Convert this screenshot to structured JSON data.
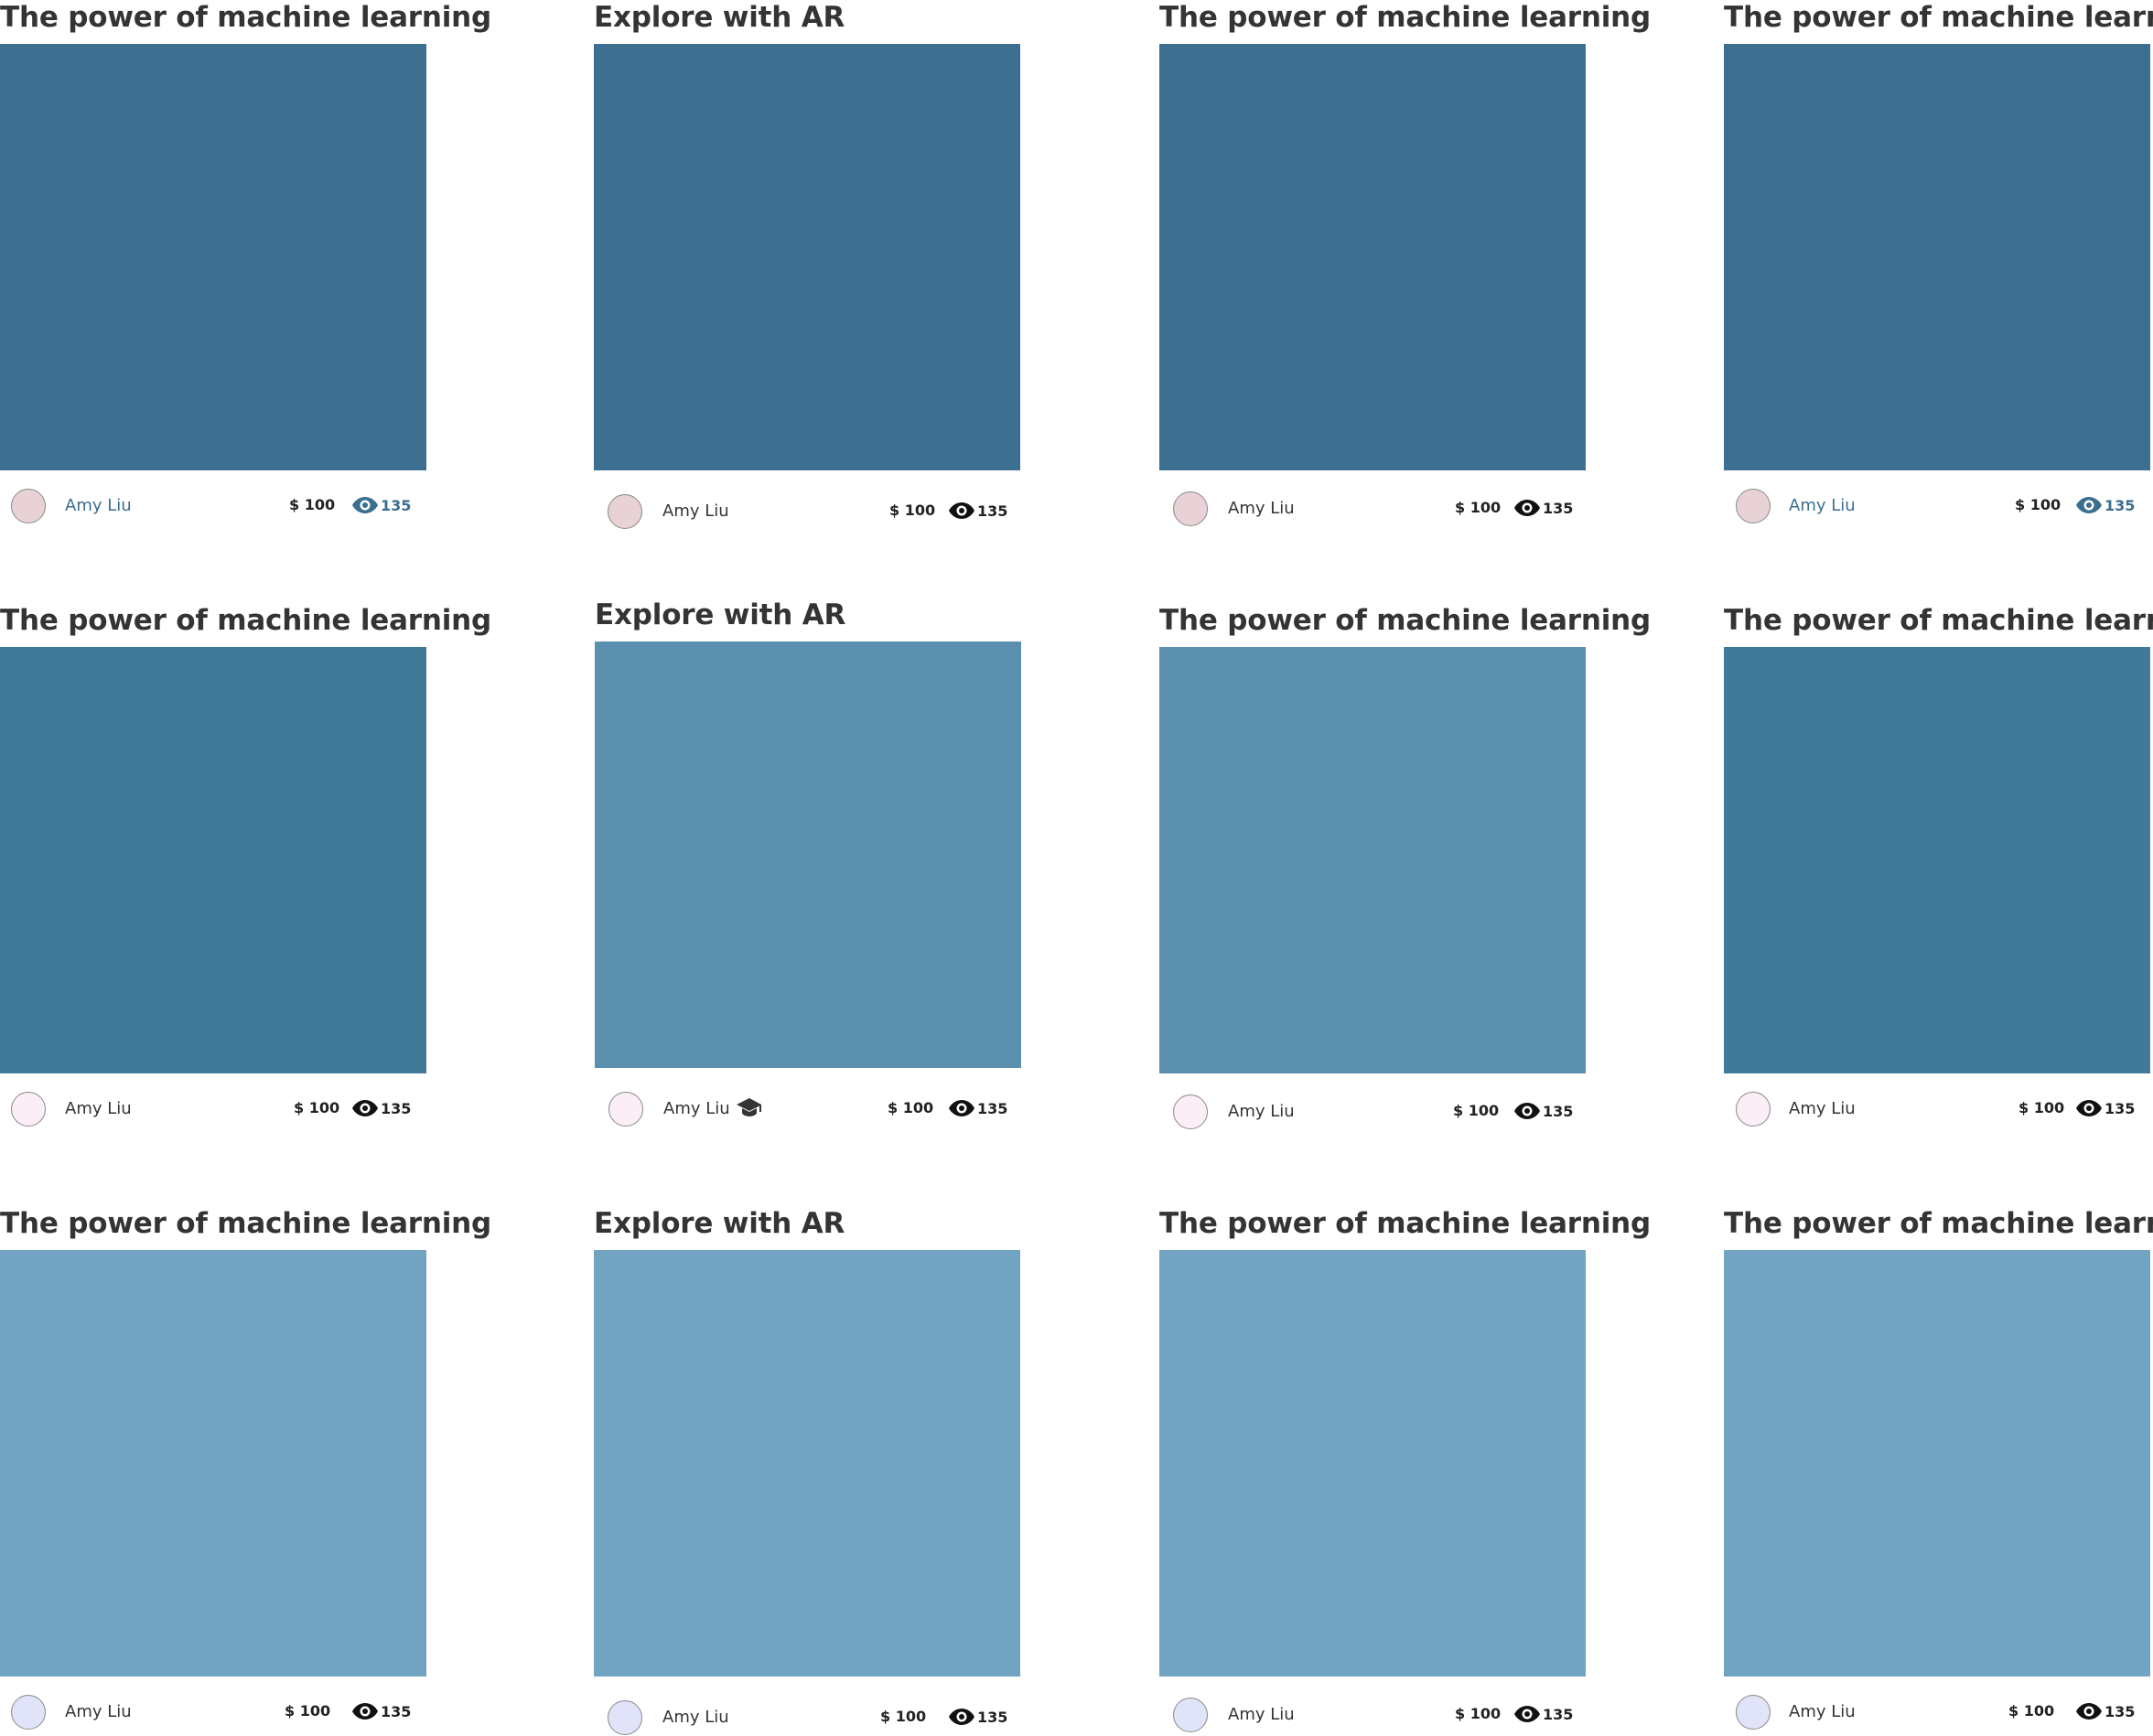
{
  "colors": {
    "row1_image": "#3d6f91",
    "row2_image_dark": "#417a99",
    "row2_image_light": "#5a8fad",
    "row3_image": "#71a4c0",
    "title_text": "#343434",
    "accent": "#3b6e8f"
  },
  "cards": [
    {
      "title": "The power of machine learning",
      "author": "Amy Liu",
      "price": "$ 100",
      "views": "135",
      "avatar_color": "#e8d2d5",
      "image_color": "#3d6f91",
      "highlighted": true,
      "icon": "eye-icon"
    },
    {
      "title": "Explore with AR",
      "author": "Amy Liu",
      "price": "$ 100",
      "views": "135",
      "avatar_color": "#e8d2d5",
      "image_color": "#3d6f91",
      "highlighted": false,
      "icon": "eye-icon"
    },
    {
      "title": "The power of machine learning",
      "author": "Amy Liu",
      "price": "$ 100",
      "views": "135",
      "avatar_color": "#e8d2d5",
      "image_color": "#3d6f91",
      "highlighted": false,
      "icon": "eye-icon"
    },
    {
      "title": "The power of machine learning",
      "author": "Amy Liu",
      "price": "$ 100",
      "views": "135",
      "avatar_color": "#e8d2d5",
      "image_color": "#3d6f91",
      "highlighted": true,
      "icon": "eye-icon"
    },
    {
      "title": "The power of machine learning",
      "author": "Amy Liu",
      "price": "$ 100",
      "views": "135",
      "avatar_color": "#fbeef7",
      "image_color": "#417a99",
      "highlighted": false,
      "icon": "eye-icon"
    },
    {
      "title": "Explore with AR",
      "author": "Amy Liu",
      "price": "$ 100",
      "views": "135",
      "avatar_color": "#fbeef7",
      "image_color": "#5a8fad",
      "highlighted": false,
      "icon": "eye-icon",
      "badge": "graduation-cap-icon"
    },
    {
      "title": "The power of machine learning",
      "author": "Amy Liu",
      "price": "$ 100",
      "views": "135",
      "avatar_color": "#fbeef7",
      "image_color": "#5a8fad",
      "highlighted": false,
      "icon": "eye-icon"
    },
    {
      "title": "The power of machine learning",
      "author": "Amy Liu",
      "price": "$ 100",
      "views": "135",
      "avatar_color": "#fbeef7",
      "image_color": "#417a99",
      "highlighted": false,
      "icon": "eye-icon"
    },
    {
      "title": "The power of machine learning",
      "author": "Amy Liu",
      "price": "$ 100",
      "views": "135",
      "avatar_color": "#e1e3f8",
      "image_color": "#71a4c0",
      "highlighted": false,
      "icon": "eye-icon"
    },
    {
      "title": "Explore with AR",
      "author": "Amy Liu",
      "price": "$ 100",
      "views": "135",
      "avatar_color": "#e1e3f8",
      "image_color": "#71a4c0",
      "highlighted": false,
      "icon": "eye-icon"
    },
    {
      "title": "The power of machine learning",
      "author": "Amy Liu",
      "price": "$ 100",
      "views": "135",
      "avatar_color": "#e1e3f8",
      "image_color": "#71a4c0",
      "highlighted": false,
      "icon": "eye-icon"
    },
    {
      "title": "The power of machine learning",
      "author": "Amy Liu",
      "price": "$ 100",
      "views": "135",
      "avatar_color": "#e1e3f8",
      "image_color": "#71a4c0",
      "highlighted": false,
      "icon": "eye-icon"
    }
  ]
}
